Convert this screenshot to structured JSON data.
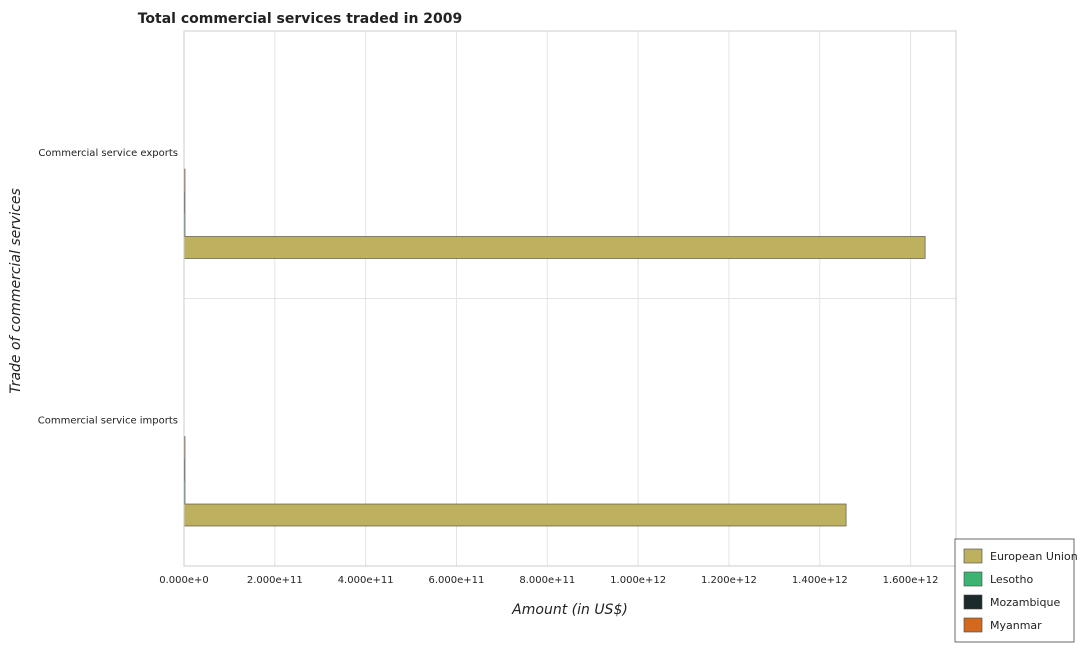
{
  "chart_data": {
    "type": "bar",
    "orientation": "horizontal",
    "title": "Total commercial services traded in 2009",
    "xlabel": "Amount (in US$)",
    "ylabel": "Trade of commercial services",
    "categories": [
      "Commercial service exports",
      "Commercial service imports"
    ],
    "xlim": [
      0,
      1700000000000
    ],
    "xticks": [
      0,
      200000000000,
      400000000000,
      600000000000,
      800000000000,
      1000000000000,
      1200000000000,
      1400000000000,
      1600000000000
    ],
    "xtick_labels": [
      "0.000e+0",
      "2.000e+11",
      "4.000e+11",
      "6.000e+11",
      "8.000e+11",
      "1.000e+12",
      "1.200e+12",
      "1.400e+12",
      "1.600e+12"
    ],
    "grid": true,
    "legend_position": "bottom-right",
    "series": [
      {
        "name": "European Union",
        "color": "#bdb15f",
        "values": [
          1632000000000,
          1458000000000
        ]
      },
      {
        "name": "Lesotho",
        "color": "#3cb371",
        "values": [
          50000000,
          300000000
        ]
      },
      {
        "name": "Mozambique",
        "color": "#1b2a2a",
        "values": [
          600000000,
          1500000000
        ]
      },
      {
        "name": "Myanmar",
        "color": "#d2691e",
        "values": [
          300000000,
          700000000
        ]
      }
    ]
  }
}
